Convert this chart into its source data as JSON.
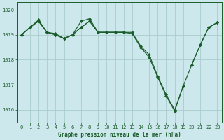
{
  "title": "Graphe pression niveau de la mer (hPa)",
  "background_color": "#cce8ec",
  "grid_color": "#aacccc",
  "line_color": "#1a5c2a",
  "xlim_min": -0.5,
  "xlim_max": 23.5,
  "ylim_min": 1015.5,
  "ylim_max": 1020.3,
  "yticks": [
    1016,
    1017,
    1018,
    1019,
    1020
  ],
  "xticks": [
    0,
    1,
    2,
    3,
    4,
    5,
    6,
    7,
    8,
    9,
    10,
    11,
    12,
    13,
    14,
    15,
    16,
    17,
    18,
    19,
    20,
    21,
    22,
    23
  ],
  "s1": [
    1019.0,
    1019.3,
    1019.6,
    1019.1,
    1019.05,
    1018.85,
    1019.0,
    1019.55,
    1019.65,
    1019.1,
    1019.1,
    1019.1,
    1019.1,
    null,
    null,
    null,
    null,
    null,
    null,
    null,
    null,
    null,
    null,
    null
  ],
  "s2": [
    1019.0,
    1019.3,
    1019.55,
    1019.1,
    1019.0,
    1018.85,
    1019.0,
    1019.3,
    1019.55,
    1019.1,
    1019.1,
    1019.1,
    1019.1,
    1019.1,
    1018.55,
    1018.2,
    1017.35,
    1016.6,
    1016.0,
    1016.95,
    1017.8,
    1018.6,
    1019.3,
    1019.5
  ],
  "s3": [
    1019.0,
    1019.3,
    1019.55,
    1019.1,
    1019.0,
    1018.85,
    1019.0,
    1019.3,
    1019.55,
    1019.1,
    1019.1,
    1019.1,
    1019.1,
    1019.05,
    1018.5,
    1018.1,
    1017.3,
    1016.55,
    1015.95,
    1016.95,
    null,
    null,
    null,
    null
  ],
  "s4": [
    null,
    null,
    null,
    null,
    null,
    null,
    null,
    null,
    null,
    null,
    null,
    null,
    null,
    null,
    null,
    null,
    null,
    null,
    null,
    null,
    1017.8,
    1018.6,
    1019.3,
    1019.5
  ],
  "tick_fontsize": 5.0,
  "xlabel_fontsize": 5.5
}
